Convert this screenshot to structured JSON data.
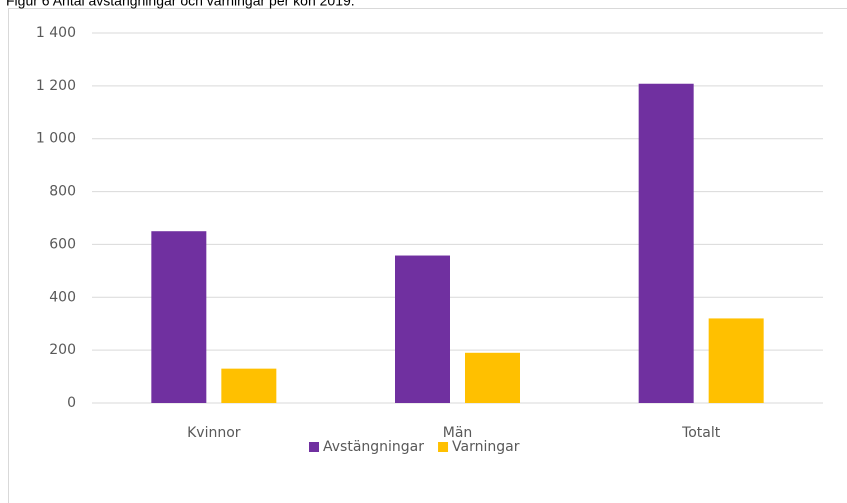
{
  "chart_data": {
    "type": "bar",
    "title": "Figur 6 Antal avstängningar och varningar per kön 2019.",
    "categories": [
      "Kvinnor",
      "Män",
      "Totalt"
    ],
    "series": [
      {
        "name": "Avstängningar",
        "color": "#7030a0",
        "values": [
          650,
          558,
          1208
        ]
      },
      {
        "name": "Varningar",
        "color": "#ffc000",
        "values": [
          130,
          190,
          320
        ]
      }
    ],
    "ylim": [
      0,
      1400
    ],
    "yticks": [
      0,
      200,
      400,
      600,
      800,
      {
        "value": 1000,
        "label": "1 000"
      },
      {
        "value": 1200,
        "label": "1 200"
      },
      {
        "value": 1400,
        "label": "1 400"
      }
    ],
    "grid": true,
    "legend": "bottom"
  }
}
